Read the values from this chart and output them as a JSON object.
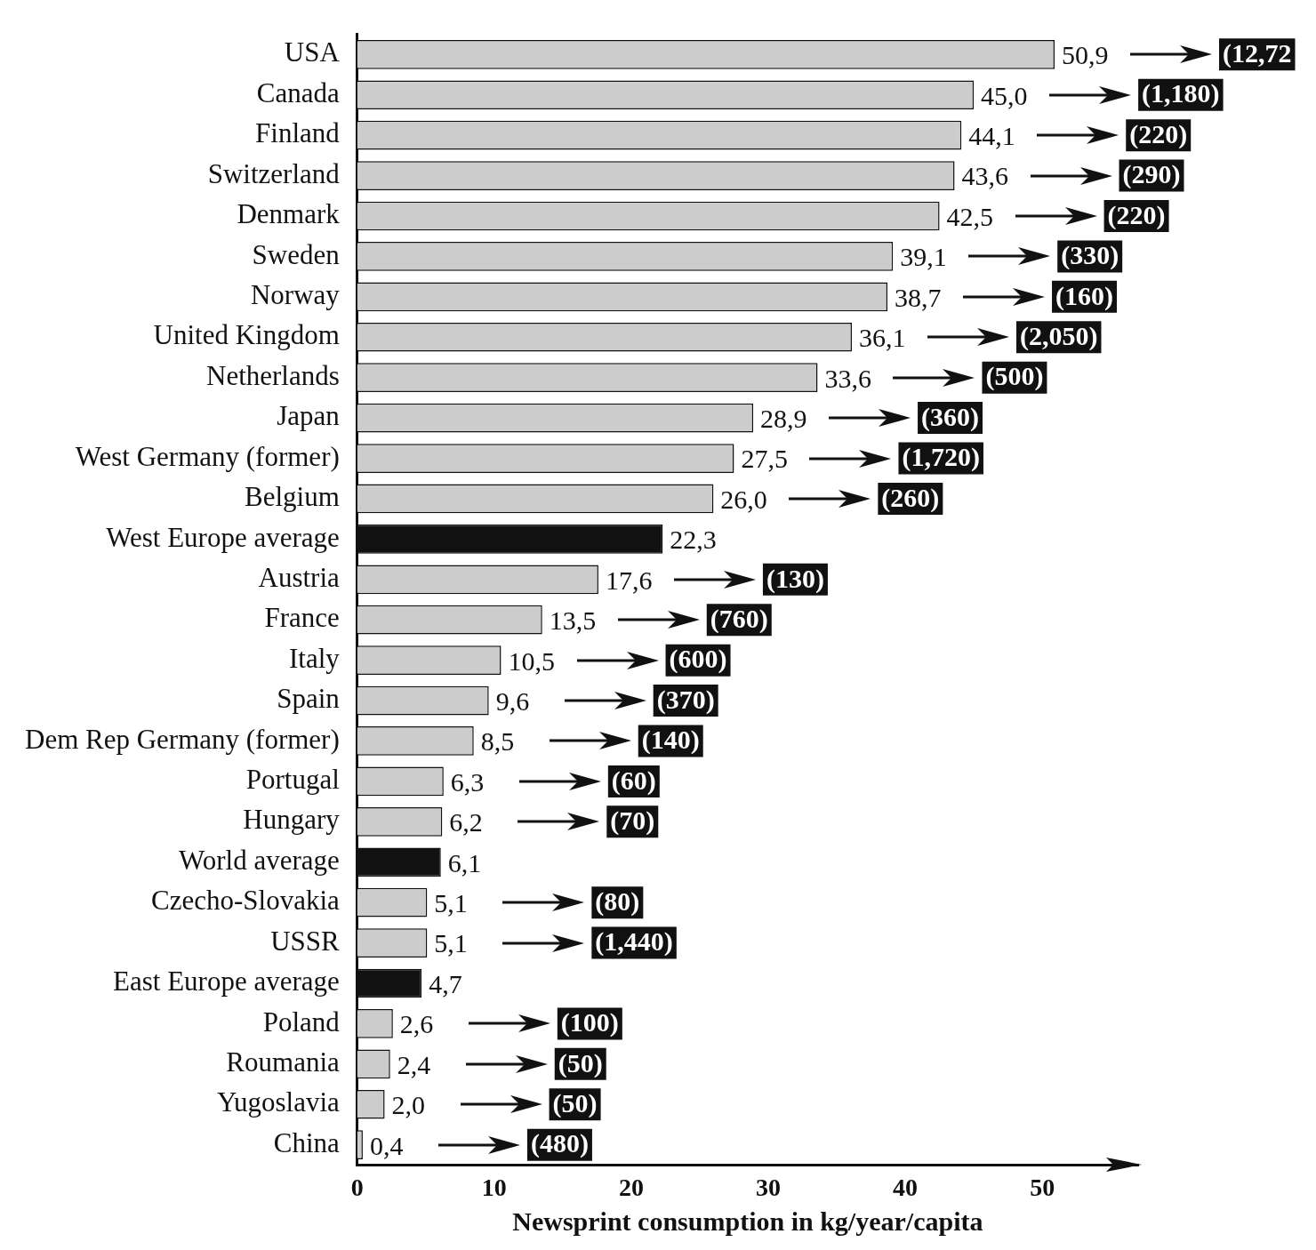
{
  "chart_data": {
    "type": "bar",
    "orientation": "horizontal",
    "xlabel": "Newsprint consumption in kg/year/capita",
    "categories": [
      "USA",
      "Canada",
      "Finland",
      "Switzerland",
      "Denmark",
      "Sweden",
      "Norway",
      "United Kingdom",
      "Netherlands",
      "Japan",
      "West Germany (former)",
      "Belgium",
      "West Europe average",
      "Austria",
      "France",
      "Italy",
      "Spain",
      "Dem Rep Germany (former)",
      "Portugal",
      "Hungary",
      "World average",
      "Czecho-Slovakia",
      "USSR",
      "East Europe average",
      "Poland",
      "Roumania",
      "Yugoslavia",
      "China"
    ],
    "values": [
      50.9,
      45.0,
      44.1,
      43.6,
      42.5,
      39.1,
      38.7,
      36.1,
      33.6,
      28.9,
      27.5,
      26.0,
      22.3,
      17.6,
      13.5,
      10.5,
      9.6,
      8.5,
      6.3,
      6.2,
      6.1,
      5.1,
      5.1,
      4.7,
      2.6,
      2.4,
      2.0,
      0.4
    ],
    "value_labels": [
      "50,9",
      "45,0",
      "44,1",
      "43,6",
      "42,5",
      "39,1",
      "38,7",
      "36,1",
      "33,6",
      "28,9",
      "27,5",
      "26,0",
      "22,3",
      "17,6",
      "13,5",
      "10,5",
      "9,6",
      "8,5",
      "6,3",
      "6,2",
      "6,1",
      "5,1",
      "5,1",
      "4,7",
      "2,6",
      "2,4",
      "2,0",
      "0,4"
    ],
    "colors": [
      "#cccccc",
      "#cccccc",
      "#cccccc",
      "#cccccc",
      "#cccccc",
      "#cccccc",
      "#cccccc",
      "#cccccc",
      "#cccccc",
      "#cccccc",
      "#cccccc",
      "#cccccc",
      "#111111",
      "#cccccc",
      "#cccccc",
      "#cccccc",
      "#cccccc",
      "#cccccc",
      "#cccccc",
      "#cccccc",
      "#111111",
      "#cccccc",
      "#cccccc",
      "#111111",
      "#cccccc",
      "#cccccc",
      "#cccccc",
      "#cccccc"
    ],
    "xlim": [
      0,
      57
    ],
    "xticks": [
      0,
      10,
      20,
      30,
      40,
      50
    ],
    "grid": false,
    "legend": false,
    "annotations": [
      "(12,72",
      "(1,180)",
      "(220)",
      "(290)",
      "(220)",
      "(330)",
      "(160)",
      "(2,050)",
      "(500)",
      "(360)",
      "(1,720)",
      "(260)",
      "(130)",
      "(760)",
      "(600)",
      "(370)",
      "(140)",
      "(60)",
      "(70)",
      "(80)",
      "(1,440)",
      "(100)",
      "(50)",
      "(50)",
      "(480)"
    ]
  }
}
